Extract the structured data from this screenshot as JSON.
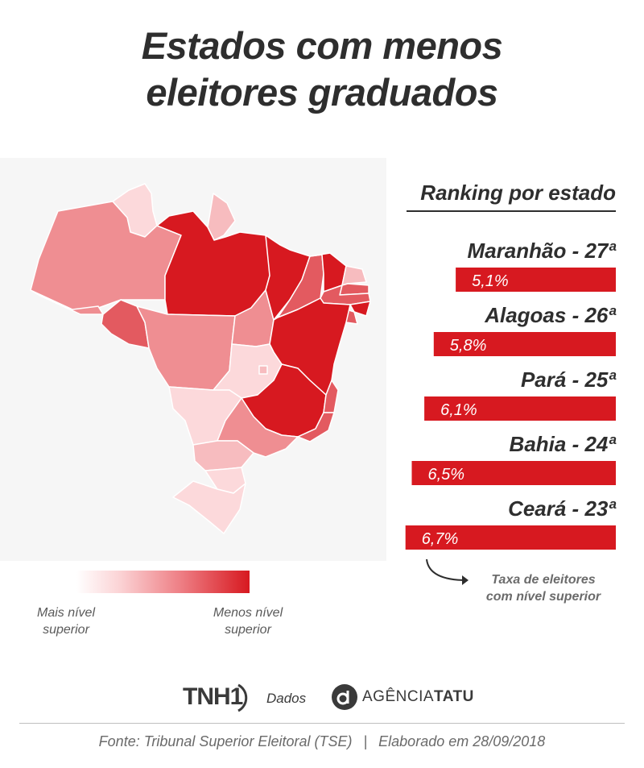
{
  "title_line1": "Estados com menos",
  "title_line2": "eleitores graduados",
  "ranking_header": "Ranking por estado",
  "annotation_line1": "Taxa de eleitores",
  "annotation_line2": "com nível superior",
  "legend": {
    "left_line1": "Mais nível",
    "left_line2": "superior",
    "right_line1": "Menos nível",
    "right_line2": "superior",
    "colors": [
      "#ffffff",
      "#fbd3d5",
      "#ee7f85",
      "#d71920"
    ]
  },
  "logos": {
    "tnh1": "TNH1",
    "dados": "Dados",
    "tatu_regular": "AGÊNCIA",
    "tatu_bold": "TATU"
  },
  "footer": {
    "source": "Fonte: Tribunal Superior Eleitoral (TSE)",
    "separator": "|",
    "date": "Elaborado em 28/09/2018"
  },
  "map_colors": {
    "darkest": "#d71920",
    "dark": "#e35a60",
    "medium": "#ef8e92",
    "light": "#f7bcbf",
    "lightest": "#fcd9db"
  },
  "chart_data": {
    "type": "bar",
    "title": "Ranking por estado",
    "categories": [
      "Maranhão",
      "Alagoas",
      "Pará",
      "Bahia",
      "Ceará"
    ],
    "ranks": [
      "27ª",
      "26ª",
      "25ª",
      "24ª",
      "23ª"
    ],
    "values": [
      5.1,
      5.8,
      6.1,
      6.5,
      6.7
    ],
    "value_labels": [
      "5,1%",
      "5,8%",
      "6,1%",
      "6,5%",
      "6,7%"
    ],
    "unit": "%",
    "ylabel": "Taxa de eleitores com nível superior",
    "bar_color": "#d71920"
  }
}
